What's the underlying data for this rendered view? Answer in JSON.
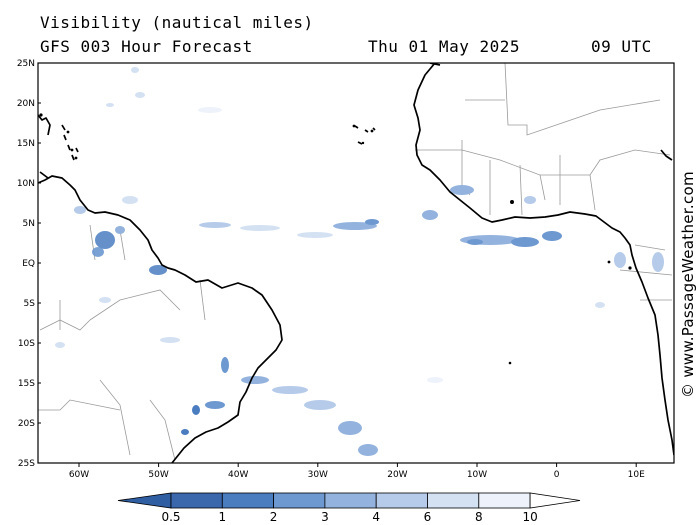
{
  "header": {
    "title": "Visibility (nautical miles)",
    "model": "GFS 003 Hour Forecast",
    "date": "Thu 01 May 2025",
    "time": "09 UTC"
  },
  "credit": "© www.PassageWeather.com",
  "map": {
    "lat_labels": [
      "25N",
      "20N",
      "15N",
      "10N",
      "5N",
      "EQ",
      "5S",
      "10S",
      "15S",
      "20S",
      "25S"
    ],
    "lon_labels": [
      "60W",
      "50W",
      "40W",
      "30W",
      "20W",
      "10W",
      "0",
      "10E"
    ]
  },
  "legend": {
    "labels": [
      "0.5",
      "1",
      "2",
      "3",
      "4",
      "6",
      "8",
      "10"
    ],
    "colors": [
      "#3b68ad",
      "#4a7cc0",
      "#6d98d0",
      "#93b3de",
      "#b5cbe9",
      "#d3e1f3",
      "#eef3fb"
    ]
  }
}
